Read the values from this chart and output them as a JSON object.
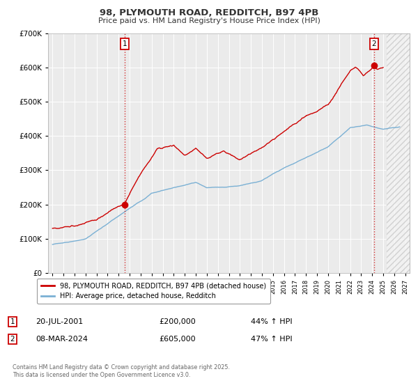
{
  "title": "98, PLYMOUTH ROAD, REDDITCH, B97 4PB",
  "subtitle": "Price paid vs. HM Land Registry's House Price Index (HPI)",
  "background_color": "#ffffff",
  "plot_bg_color": "#ebebeb",
  "grid_color": "#ffffff",
  "legend_line1": "98, PLYMOUTH ROAD, REDDITCH, B97 4PB (detached house)",
  "legend_line2": "HPI: Average price, detached house, Redditch",
  "annotation1_label": "1",
  "annotation1_date": "20-JUL-2001",
  "annotation1_price": "£200,000",
  "annotation1_hpi": "44% ↑ HPI",
  "annotation2_label": "2",
  "annotation2_date": "08-MAR-2024",
  "annotation2_price": "£605,000",
  "annotation2_hpi": "47% ↑ HPI",
  "footnote": "Contains HM Land Registry data © Crown copyright and database right 2025.\nThis data is licensed under the Open Government Licence v3.0.",
  "ylim": [
    0,
    700000
  ],
  "xlim_start": 1994.6,
  "xlim_end": 2027.4,
  "red_color": "#cc0000",
  "blue_color": "#7ab0d4",
  "marker1_x": 2001.55,
  "marker1_y": 200000,
  "marker2_x": 2024.18,
  "marker2_y": 605000,
  "vline1_x": 2001.55,
  "vline2_x": 2024.18,
  "hatch_start": 2025.3,
  "hatch_end": 2027.4
}
